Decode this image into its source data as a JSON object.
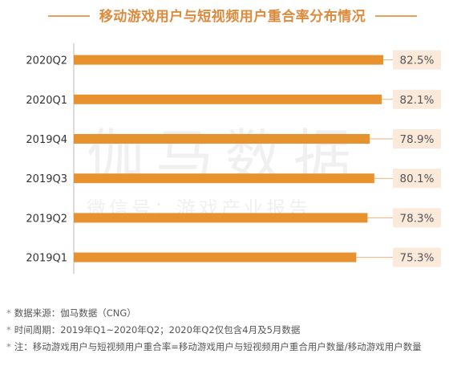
{
  "watermark": {
    "brand": "伽马数据",
    "tagline": "微信号：游戏产业报告"
  },
  "chart_data": {
    "type": "bar",
    "orientation": "horizontal",
    "title": "移动游戏用户与短视频用户重合率分布情况",
    "categories": [
      "2020Q2",
      "2020Q1",
      "2019Q4",
      "2019Q3",
      "2019Q2",
      "2019Q1"
    ],
    "values": [
      82.5,
      82.1,
      78.9,
      80.1,
      78.3,
      75.3
    ],
    "labels": [
      "82.5%",
      "82.1%",
      "78.9%",
      "80.1%",
      "78.3%",
      "75.3%"
    ],
    "unit": "%",
    "xlim": [
      0,
      100
    ],
    "grid": false,
    "bar_color": "#e8912f",
    "label_bg": "#fbe9da",
    "label_color": "#555555",
    "accent": "#dc8a3c"
  },
  "notes": [
    "数据来源：伽马数据（CNG）",
    "时间周期：2019年Q1~2020年Q2；2020年Q2仅包含4月及5月数据",
    "注：移动游戏用户与短视频用户重合率=移动游戏用户与短视频用户重合用户数量/移动游戏用户数量"
  ]
}
